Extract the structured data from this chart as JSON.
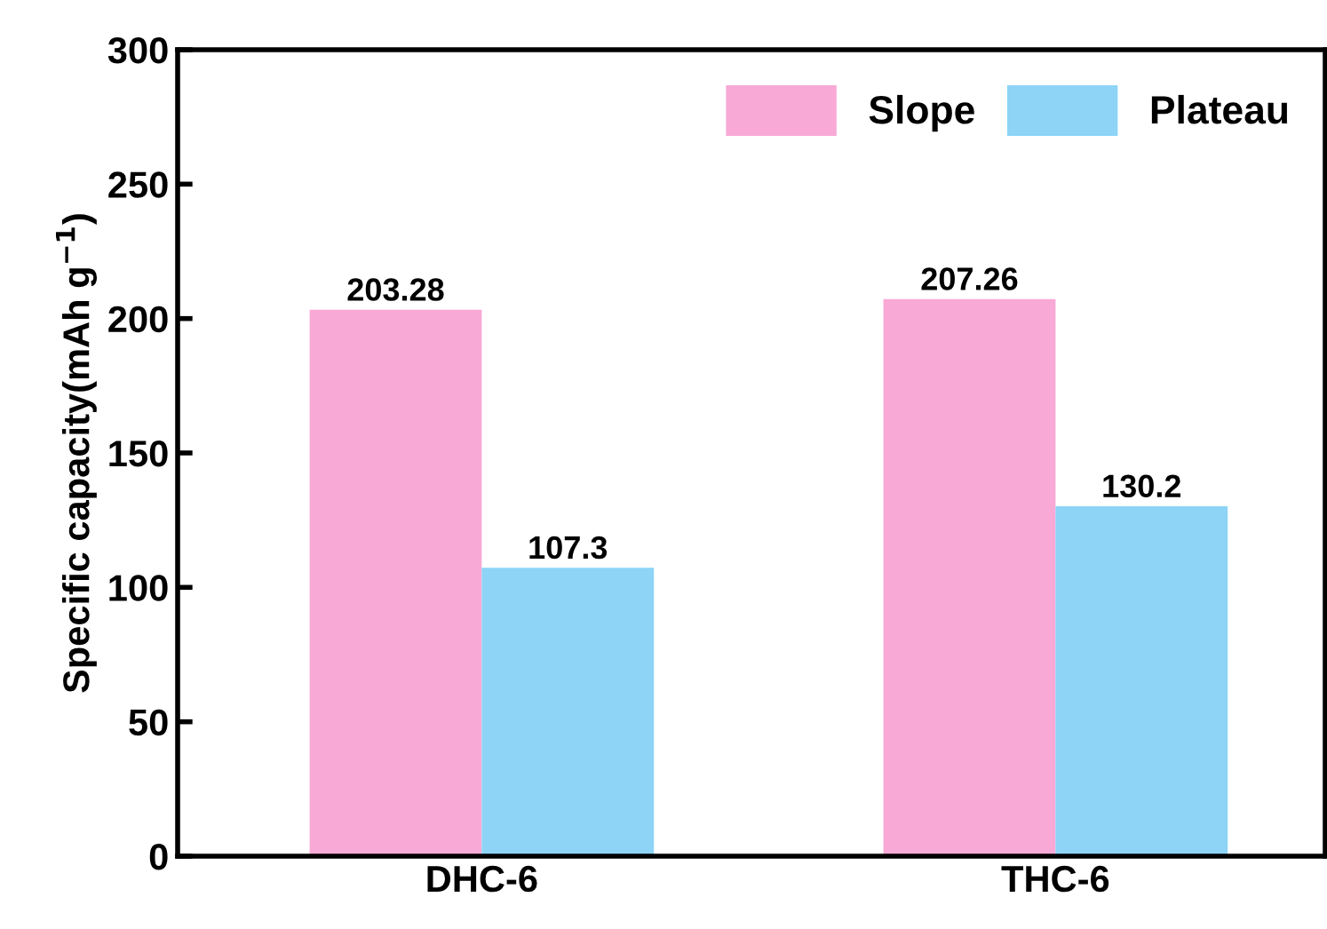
{
  "chart_data": {
    "type": "bar",
    "ylabel": "Specific capacity(mAh g$^{−1}$)",
    "categories": [
      "DHC-6",
      "THC-6"
    ],
    "series": [
      {
        "name": "Slope",
        "color": "#f8a9d6",
        "values": [
          203.28,
          207.26
        ]
      },
      {
        "name": "Plateau",
        "color": "#8dd4f7",
        "values": [
          107.3,
          130.2
        ]
      }
    ],
    "ylim": [
      0,
      300
    ],
    "yticks": [
      0,
      50,
      100,
      150,
      200,
      250,
      300
    ],
    "data_labels": true,
    "legend": "top right",
    "grid": false
  }
}
